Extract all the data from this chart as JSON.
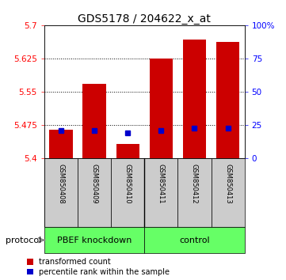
{
  "title": "GDS5178 / 204622_x_at",
  "samples": [
    "GSM850408",
    "GSM850409",
    "GSM850410",
    "GSM850411",
    "GSM850412",
    "GSM850413"
  ],
  "red_values": [
    5.465,
    5.567,
    5.432,
    5.625,
    5.668,
    5.662
  ],
  "blue_values": [
    5.462,
    5.463,
    5.458,
    5.463,
    5.468,
    5.468
  ],
  "ylim": [
    5.4,
    5.7
  ],
  "yticks": [
    5.4,
    5.475,
    5.55,
    5.625,
    5.7
  ],
  "right_yticks": [
    0,
    25,
    50,
    75,
    100
  ],
  "right_ytick_labels": [
    "0",
    "25",
    "50",
    "75",
    "100%"
  ],
  "bar_bottom": 5.4,
  "sample_bg_color": "#cccccc",
  "red_color": "#cc0000",
  "blue_color": "#0000cc",
  "green_color": "#66ff66",
  "bar_width": 0.7,
  "protocol_label": "protocol",
  "legend_red": "transformed count",
  "legend_blue": "percentile rank within the sample",
  "title_fontsize": 10,
  "tick_fontsize": 7.5,
  "sample_fontsize": 6,
  "group_fontsize": 8,
  "legend_fontsize": 7
}
